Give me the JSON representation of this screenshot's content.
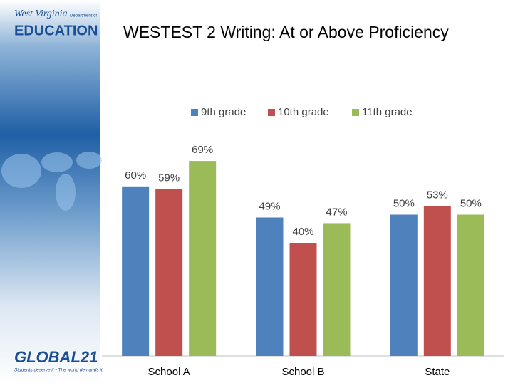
{
  "branding": {
    "state": "West Virginia",
    "department": "Department of",
    "agency": "EDUCATION",
    "program": "GLOBAL21",
    "tagline": "Students deserve it • The world demands it"
  },
  "chart_data": {
    "type": "bar",
    "title": "WESTEST 2 Writing: At or Above Proficiency",
    "categories": [
      "School A",
      "School B",
      "State"
    ],
    "series": [
      {
        "name": "9th grade",
        "color": "#4f81bd",
        "values": [
          60,
          49,
          50
        ],
        "value_labels": [
          "60%",
          "49%",
          "50%"
        ]
      },
      {
        "name": "10th grade",
        "color": "#c0504d",
        "values": [
          59,
          40,
          53
        ],
        "value_labels": [
          "59%",
          "40%",
          "53%"
        ]
      },
      {
        "name": "11th grade",
        "color": "#9bbb59",
        "values": [
          69,
          47,
          50
        ],
        "value_labels": [
          "69%",
          "47%",
          "50%"
        ]
      }
    ],
    "ylim": [
      0,
      100
    ],
    "legend": "top"
  }
}
